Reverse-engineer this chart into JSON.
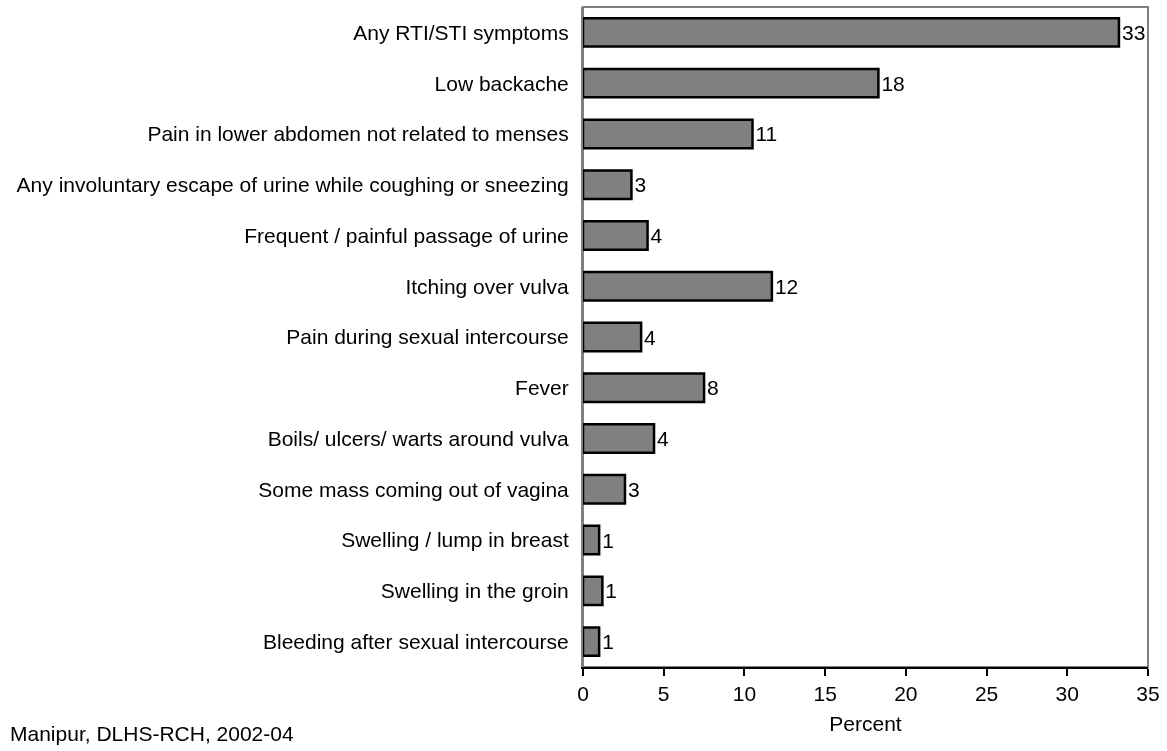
{
  "chart_data": {
    "type": "bar",
    "orientation": "horizontal",
    "categories": [
      "Any RTI/STI symptoms",
      "Low backache",
      "Pain in lower abdomen not related to menses",
      "Any involuntary escape of urine while coughing or sneezing",
      "Frequent / painful passage of urine",
      "Itching over vulva",
      "Pain during sexual intercourse",
      "Fever",
      "Boils/ ulcers/ warts around vulva",
      "Some mass coming out of vagina",
      "Swelling / lump in breast",
      "Swelling in the groin",
      "Bleeding after sexual intercourse"
    ],
    "values": [
      33.2,
      18.3,
      10.5,
      3.0,
      4.0,
      11.7,
      3.6,
      7.5,
      4.4,
      2.6,
      1.0,
      1.2,
      1.0
    ],
    "value_labels": [
      "33",
      "18",
      "11",
      "3",
      "4",
      "12",
      "4",
      "8",
      "4",
      "3",
      "1",
      "1",
      "1"
    ],
    "color": "#808080",
    "xlabel": "Percent",
    "xlim": [
      0,
      35
    ],
    "xticks": [
      0,
      5,
      10,
      15,
      20,
      25,
      30,
      35
    ],
    "annotations": [
      "Manipur, DLHS-RCH, 2002-04"
    ]
  }
}
